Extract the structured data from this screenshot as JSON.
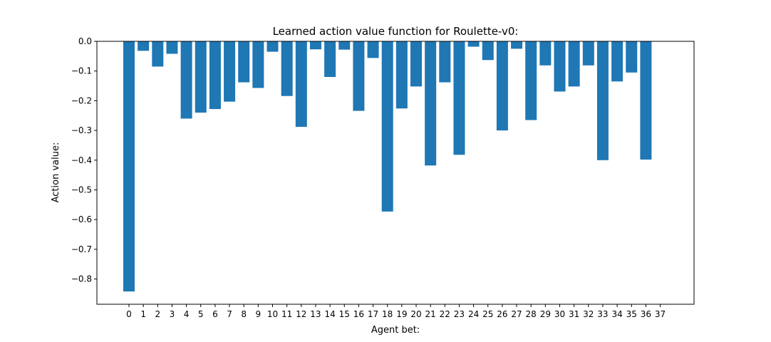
{
  "chart_data": {
    "type": "bar",
    "title": "Learned action value function for Roulette-v0:",
    "xlabel": "Agent bet:",
    "ylabel": "Action value:",
    "categories": [
      "0",
      "1",
      "2",
      "3",
      "4",
      "5",
      "6",
      "7",
      "8",
      "9",
      "10",
      "11",
      "12",
      "13",
      "14",
      "15",
      "16",
      "17",
      "18",
      "19",
      "20",
      "21",
      "22",
      "23",
      "24",
      "25",
      "26",
      "27",
      "28",
      "29",
      "30",
      "31",
      "32",
      "33",
      "34",
      "35",
      "36",
      "37"
    ],
    "values": [
      -0.842,
      -0.032,
      -0.085,
      -0.042,
      -0.26,
      -0.24,
      -0.228,
      -0.203,
      -0.138,
      -0.157,
      -0.035,
      -0.184,
      -0.288,
      -0.027,
      -0.12,
      -0.028,
      -0.234,
      -0.056,
      -0.573,
      -0.226,
      -0.152,
      -0.418,
      -0.138,
      -0.382,
      -0.018,
      -0.063,
      -0.3,
      -0.025,
      -0.265,
      -0.081,
      -0.169,
      -0.152,
      -0.081,
      -0.4,
      -0.135,
      -0.105,
      -0.398,
      null
    ],
    "ylim": [
      -0.885,
      0.0
    ],
    "yticks": [
      0.0,
      -0.1,
      -0.2,
      -0.3,
      -0.4,
      -0.5,
      -0.6,
      -0.7,
      -0.8
    ],
    "ytick_labels": [
      "0.0",
      "−0.1",
      "−0.2",
      "−0.3",
      "−0.4",
      "−0.5",
      "−0.6",
      "−0.7",
      "−0.8"
    ],
    "bar_color": "#1f77b4",
    "grid": false,
    "legend": "none"
  }
}
